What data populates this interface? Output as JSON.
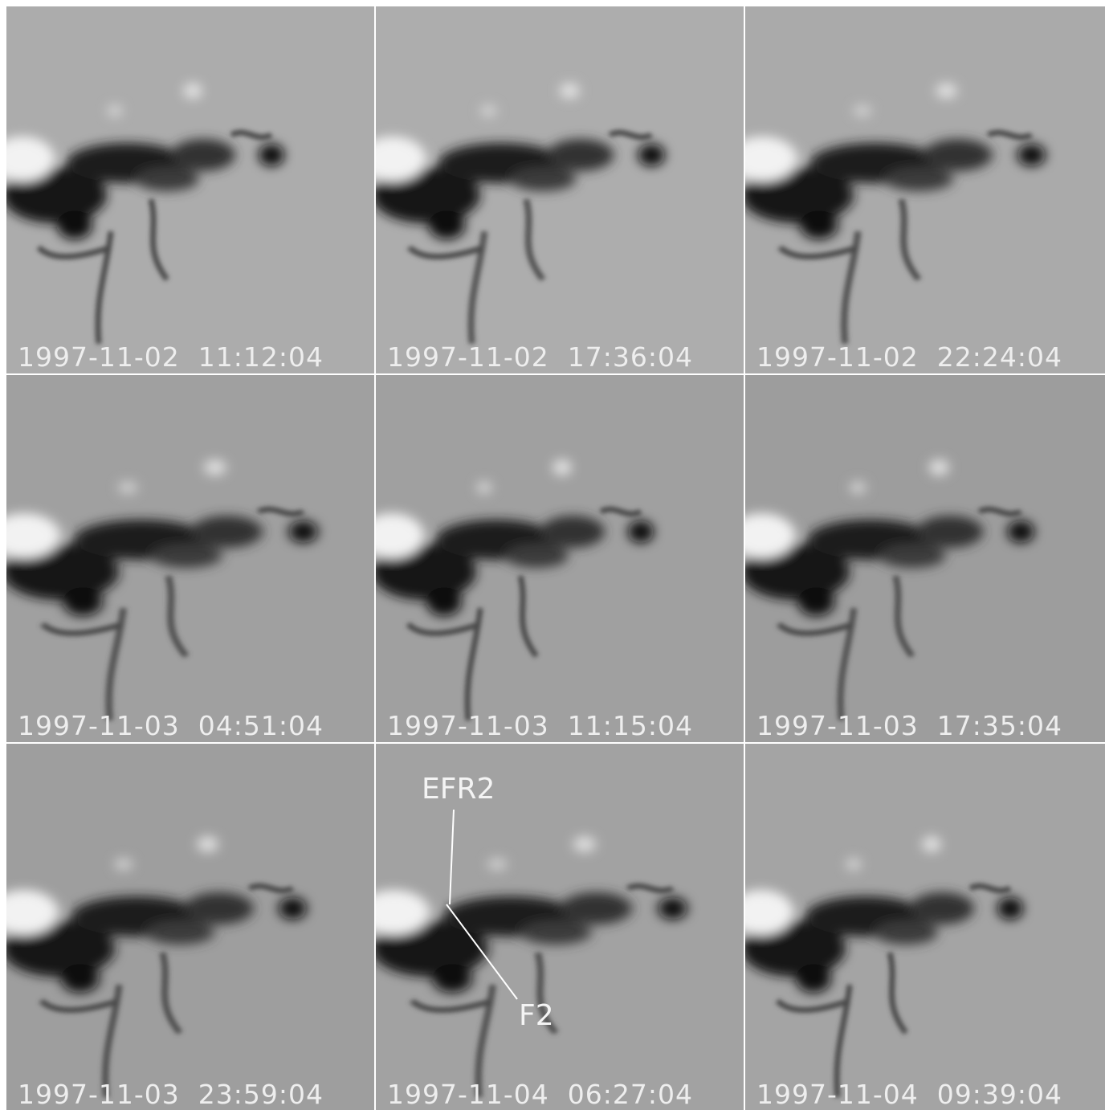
{
  "panels": [
    {
      "label": "1997-11-02  11:12:04"
    },
    {
      "label": "1997-11-02  17:36:04"
    },
    {
      "label": "1997-11-02  22:24:04"
    },
    {
      "label": "1997-11-03  04:51:04"
    },
    {
      "label": "1997-11-03  11:15:04"
    },
    {
      "label": "1997-11-03  17:35:04"
    },
    {
      "label": "1997-11-03  23:59:04"
    },
    {
      "label": "1997-11-04  06:27:04",
      "annotations": [
        "EFR2",
        "F2"
      ]
    },
    {
      "label": "1997-11-04  09:39:04"
    }
  ]
}
